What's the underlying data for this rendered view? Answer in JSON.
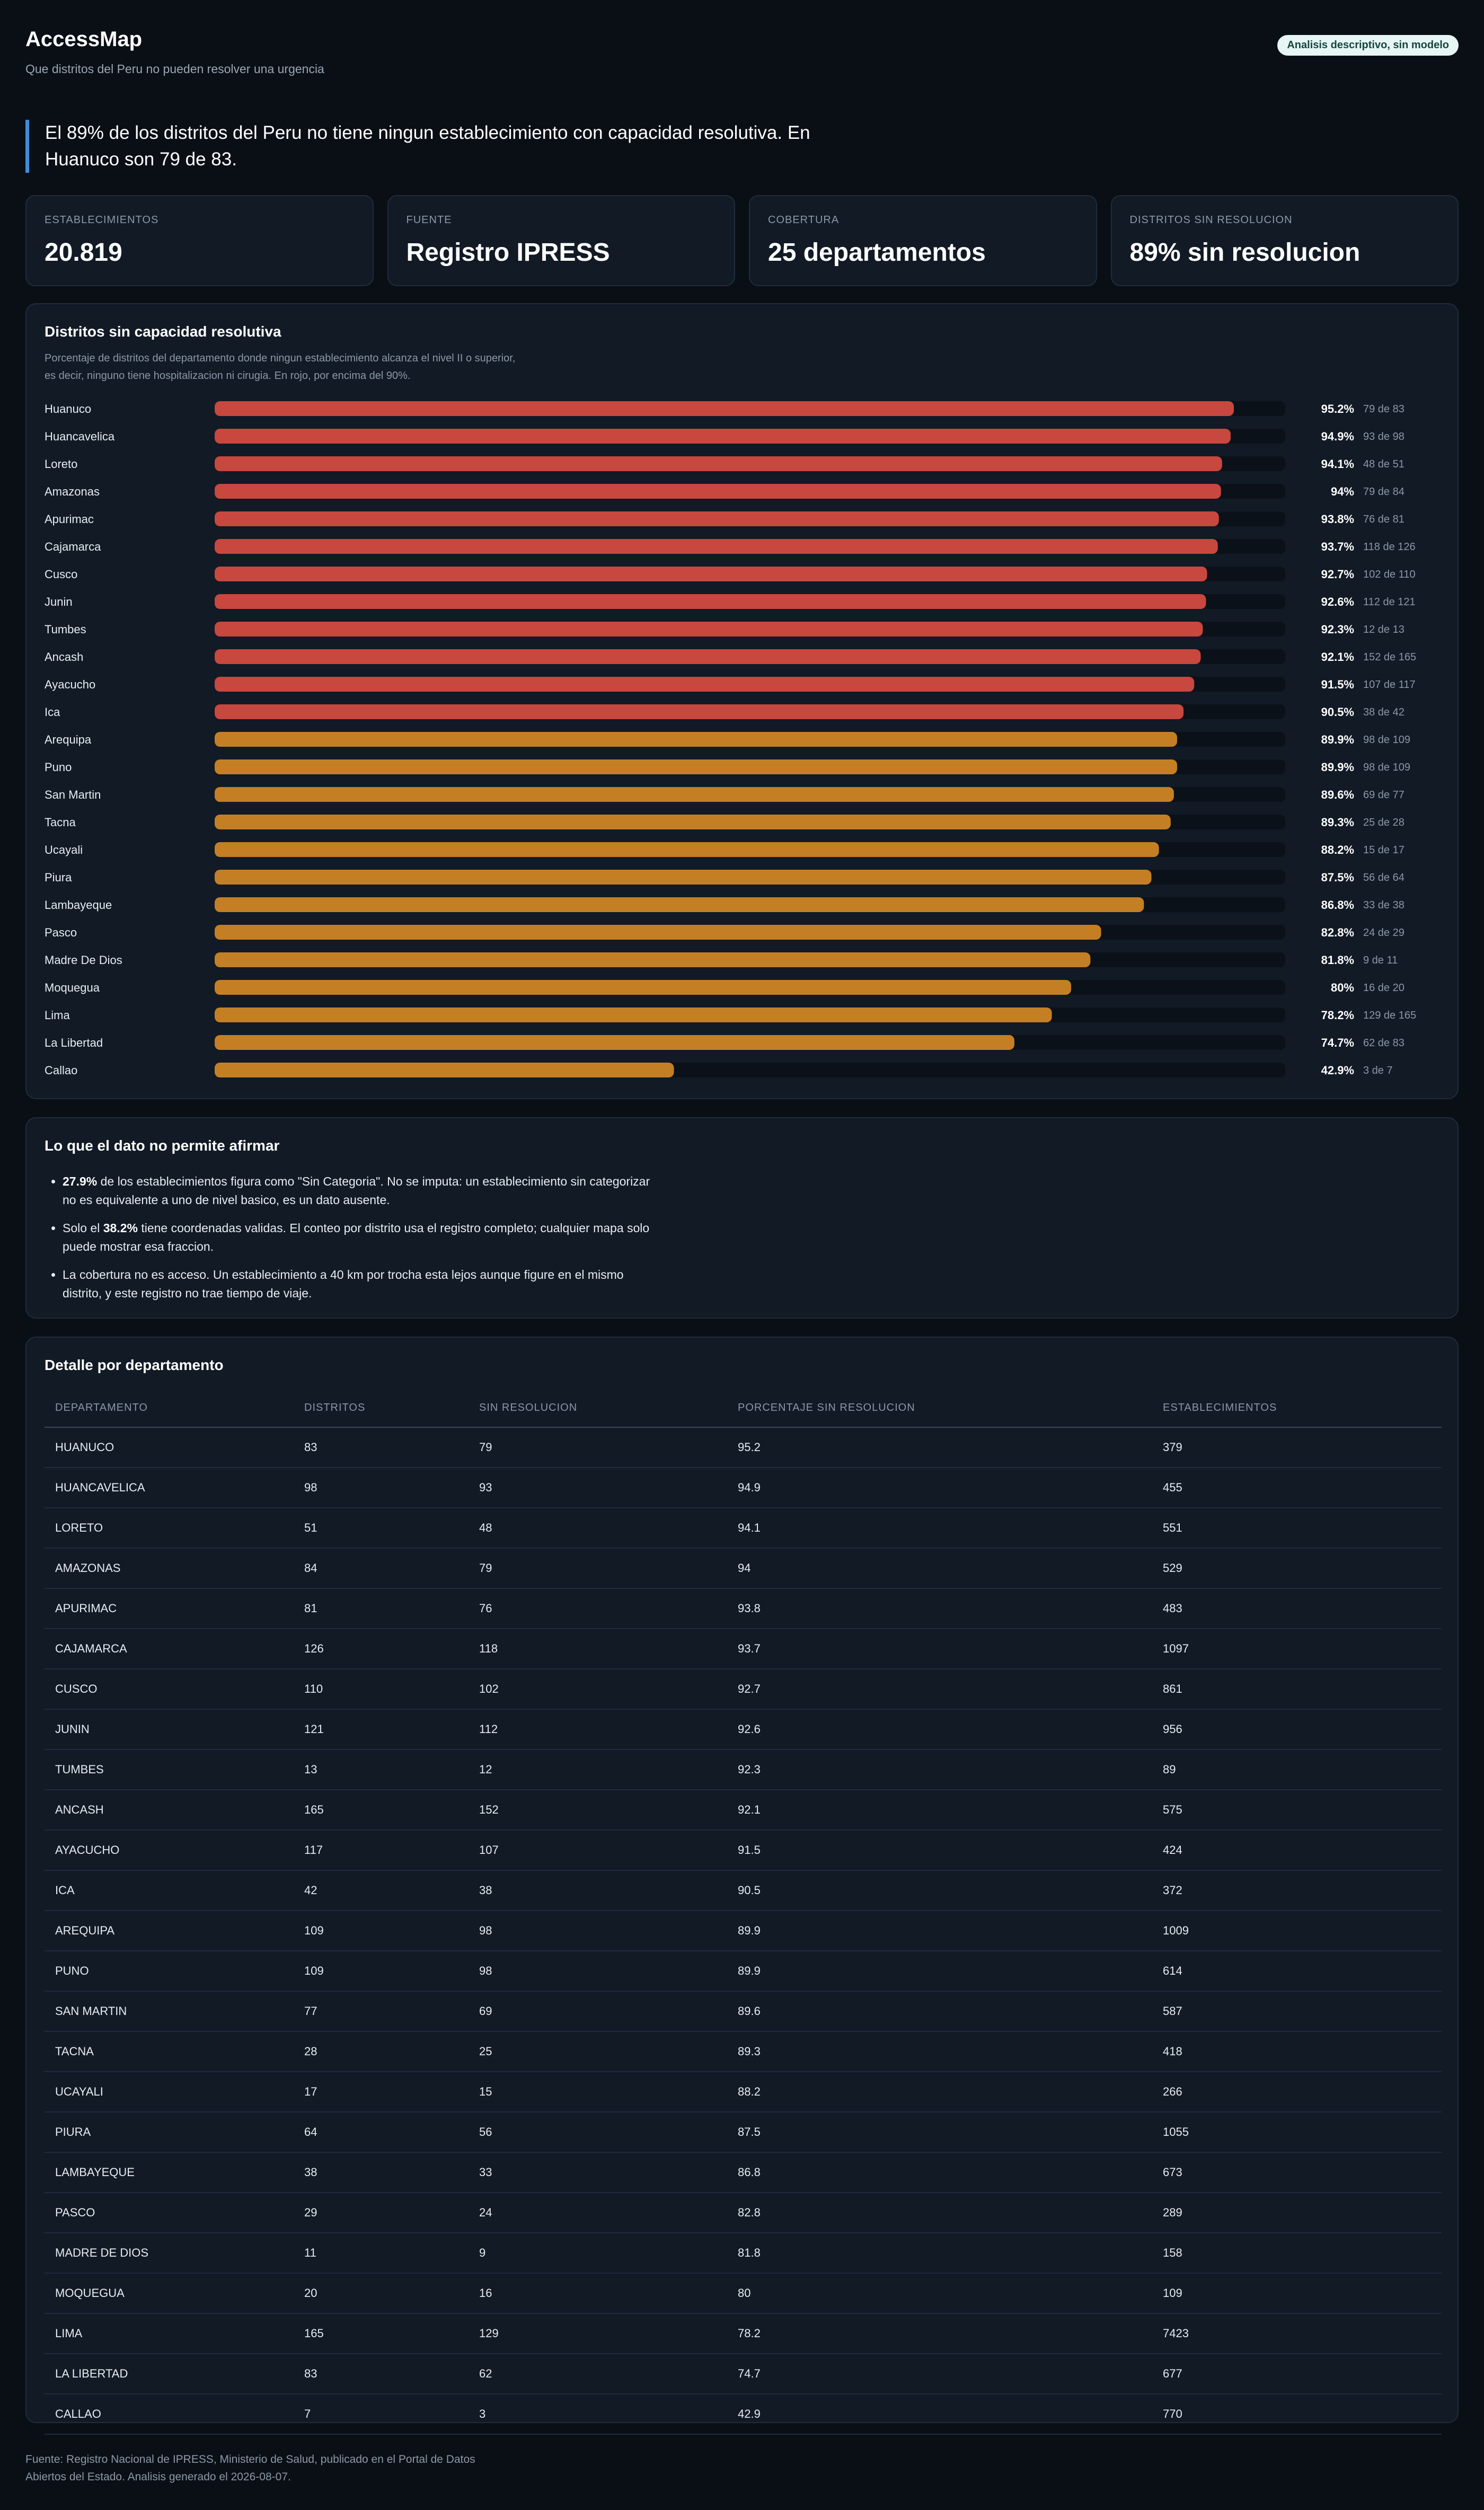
{
  "header": {
    "title": "AccessMap",
    "subtitle": "Que distritos del Peru no pueden resolver una urgencia",
    "badge": "Analisis descriptivo, sin modelo"
  },
  "headline": "El 89% de los distritos del Peru no tiene ningun establecimiento con capacidad resolutiva. En Huanuco son 79 de 83.",
  "stats": [
    {
      "label": "ESTABLECIMIENTOS",
      "value": "20.819"
    },
    {
      "label": "FUENTE",
      "value": "Registro IPRESS"
    },
    {
      "label": "COBERTURA",
      "value": "25 departamentos"
    },
    {
      "label": "DISTRITOS SIN RESOLUCION",
      "value": "89% sin resolucion"
    }
  ],
  "chart": {
    "title": "Distritos sin capacidad resolutiva",
    "description": "Porcentaje de distritos del departamento donde ningun establecimiento alcanza el nivel II o superior, es decir, ninguno tiene hospitalizacion ni cirugia. En rojo, por encima del 90%."
  },
  "chart_data": {
    "type": "bar",
    "orientation": "horizontal",
    "xlim": [
      0,
      100
    ],
    "threshold": 90,
    "colors": {
      "above": "#c8473e",
      "below": "#c47f24",
      "track": "#0b1119"
    },
    "categories": [
      "Huanuco",
      "Huancavelica",
      "Loreto",
      "Amazonas",
      "Apurimac",
      "Cajamarca",
      "Cusco",
      "Junin",
      "Tumbes",
      "Ancash",
      "Ayacucho",
      "Ica",
      "Arequipa",
      "Puno",
      "San Martin",
      "Tacna",
      "Ucayali",
      "Piura",
      "Lambayeque",
      "Pasco",
      "Madre De Dios",
      "Moquegua",
      "Lima",
      "La Libertad",
      "Callao"
    ],
    "values": [
      95.2,
      94.9,
      94.1,
      94,
      93.8,
      93.7,
      92.7,
      92.6,
      92.3,
      92.1,
      91.5,
      90.5,
      89.9,
      89.9,
      89.6,
      89.3,
      88.2,
      87.5,
      86.8,
      82.8,
      81.8,
      80,
      78.2,
      74.7,
      42.9
    ],
    "value_labels": [
      "95.2%",
      "94.9%",
      "94.1%",
      "94%",
      "93.8%",
      "93.7%",
      "92.7%",
      "92.6%",
      "92.3%",
      "92.1%",
      "91.5%",
      "90.5%",
      "89.9%",
      "89.9%",
      "89.6%",
      "89.3%",
      "88.2%",
      "87.5%",
      "86.8%",
      "82.8%",
      "81.8%",
      "80%",
      "78.2%",
      "74.7%",
      "42.9%"
    ],
    "count_labels": [
      "79 de 83",
      "93 de 98",
      "48 de 51",
      "79 de 84",
      "76 de 81",
      "118 de 126",
      "102 de 110",
      "112 de 121",
      "12 de 13",
      "152 de 165",
      "107 de 117",
      "38 de 42",
      "98 de 109",
      "98 de 109",
      "69 de 77",
      "25 de 28",
      "15 de 17",
      "56 de 64",
      "33 de 38",
      "24 de 29",
      "9 de 11",
      "16 de 20",
      "129 de 165",
      "62 de 83",
      "3 de 7"
    ]
  },
  "notes": {
    "title": "Lo que el dato no permite afirmar",
    "items": [
      {
        "bold": "27.9%",
        "text": " de los establecimientos figura como \"Sin Categoria\". No se imputa: un establecimiento sin categorizar no es equivalente a uno de nivel basico, es un dato ausente."
      },
      {
        "prefix": "Solo el ",
        "bold": "38.2%",
        "text": " tiene coordenadas validas. El conteo por distrito usa el registro completo; cualquier mapa solo puede mostrar esa fraccion."
      },
      {
        "text": "La cobertura no es acceso. Un establecimiento a 40 km por trocha esta lejos aunque figure en el mismo distrito, y este registro no trae tiempo de viaje."
      }
    ]
  },
  "table": {
    "title": "Detalle por departamento",
    "headers": [
      "DEPARTAMENTO",
      "DISTRITOS",
      "SIN RESOLUCION",
      "PORCENTAJE SIN RESOLUCION",
      "ESTABLECIMIENTOS"
    ],
    "rows": [
      [
        "HUANUCO",
        "83",
        "79",
        "95.2",
        "379"
      ],
      [
        "HUANCAVELICA",
        "98",
        "93",
        "94.9",
        "455"
      ],
      [
        "LORETO",
        "51",
        "48",
        "94.1",
        "551"
      ],
      [
        "AMAZONAS",
        "84",
        "79",
        "94",
        "529"
      ],
      [
        "APURIMAC",
        "81",
        "76",
        "93.8",
        "483"
      ],
      [
        "CAJAMARCA",
        "126",
        "118",
        "93.7",
        "1097"
      ],
      [
        "CUSCO",
        "110",
        "102",
        "92.7",
        "861"
      ],
      [
        "JUNIN",
        "121",
        "112",
        "92.6",
        "956"
      ],
      [
        "TUMBES",
        "13",
        "12",
        "92.3",
        "89"
      ],
      [
        "ANCASH",
        "165",
        "152",
        "92.1",
        "575"
      ],
      [
        "AYACUCHO",
        "117",
        "107",
        "91.5",
        "424"
      ],
      [
        "ICA",
        "42",
        "38",
        "90.5",
        "372"
      ],
      [
        "AREQUIPA",
        "109",
        "98",
        "89.9",
        "1009"
      ],
      [
        "PUNO",
        "109",
        "98",
        "89.9",
        "614"
      ],
      [
        "SAN MARTIN",
        "77",
        "69",
        "89.6",
        "587"
      ],
      [
        "TACNA",
        "28",
        "25",
        "89.3",
        "418"
      ],
      [
        "UCAYALI",
        "17",
        "15",
        "88.2",
        "266"
      ],
      [
        "PIURA",
        "64",
        "56",
        "87.5",
        "1055"
      ],
      [
        "LAMBAYEQUE",
        "38",
        "33",
        "86.8",
        "673"
      ],
      [
        "PASCO",
        "29",
        "24",
        "82.8",
        "289"
      ],
      [
        "MADRE DE DIOS",
        "11",
        "9",
        "81.8",
        "158"
      ],
      [
        "MOQUEGUA",
        "20",
        "16",
        "80",
        "109"
      ],
      [
        "LIMA",
        "165",
        "129",
        "78.2",
        "7423"
      ],
      [
        "LA LIBERTAD",
        "83",
        "62",
        "74.7",
        "677"
      ],
      [
        "CALLAO",
        "7",
        "3",
        "42.9",
        "770"
      ]
    ]
  },
  "footer": "Fuente: Registro Nacional de IPRESS, Ministerio de Salud, publicado en el Portal de Datos Abiertos del Estado. Analisis generado el 2026-08-07."
}
